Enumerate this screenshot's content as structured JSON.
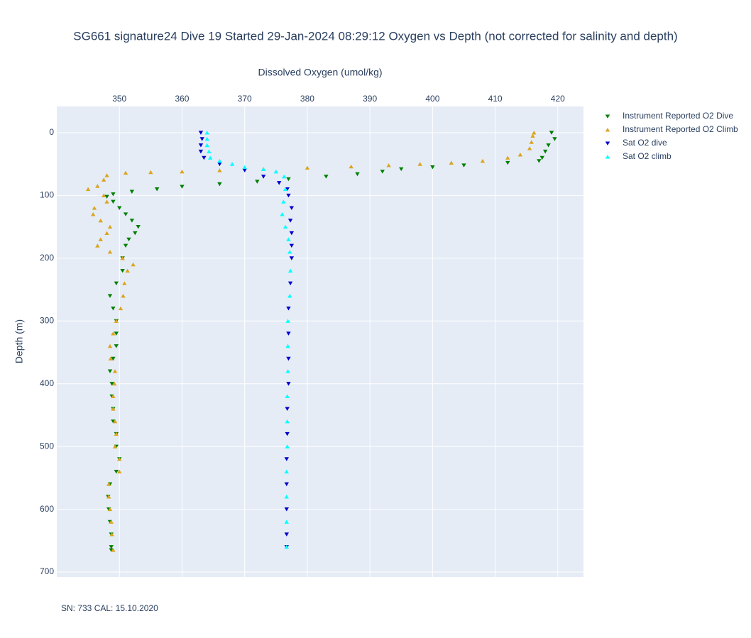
{
  "chart_data": {
    "type": "scatter",
    "title": "SG661 signature24 Dive 19 Started 29-Jan-2024 08:29:12  Oxygen vs Depth (not corrected for salinity and depth)",
    "x_label": "Dissolved Oxygen (umol/kg)",
    "y_label": "Depth (m)",
    "annotation": "SN: 733  CAL: 15.10.2020",
    "xlim": [
      340,
      424.1
    ],
    "xticks": [
      350,
      360,
      370,
      380,
      390,
      400,
      410,
      420
    ],
    "ylim": [
      -41.8,
      707.9
    ],
    "yticks": [
      0,
      100,
      200,
      300,
      400,
      500,
      600,
      700
    ],
    "y_reversed": true,
    "x_axis_side": "top",
    "grid": true,
    "legend": "right",
    "series": [
      {
        "name": "Instrument Reported O2 Dive",
        "color": "#008000",
        "marker": "triangle-down",
        "x": [
          419,
          419.5,
          418.5,
          418,
          417.5,
          417,
          412,
          405,
          400,
          395,
          392,
          388,
          383,
          377,
          372,
          366,
          360,
          356,
          352,
          349,
          348,
          349,
          350,
          351,
          352,
          353,
          352.5,
          351.5,
          351,
          350.5,
          350.5,
          349.5,
          348.5,
          349,
          349.5,
          349.5,
          349.5,
          349,
          348.5,
          348.8,
          348.8,
          349,
          349,
          349.5,
          349.5,
          350,
          349.5,
          348.5,
          348.2,
          348.3,
          348.5,
          348.7,
          348.7,
          348.7
        ],
        "y": [
          0,
          10,
          20,
          30,
          40,
          45,
          48,
          52,
          55,
          58,
          62,
          66,
          70,
          74,
          78,
          82,
          86,
          90,
          94,
          98,
          102,
          110,
          120,
          130,
          140,
          150,
          160,
          170,
          180,
          200,
          220,
          240,
          260,
          280,
          300,
          320,
          340,
          360,
          380,
          400,
          420,
          440,
          460,
          480,
          500,
          520,
          540,
          560,
          580,
          600,
          620,
          640,
          660,
          665
        ]
      },
      {
        "name": "Instrument Reported O2 Climb",
        "color": "#daa520",
        "marker": "triangle-up",
        "x": [
          349,
          348.8,
          348.7,
          348.5,
          348.3,
          348.3,
          350,
          350,
          349.3,
          349.5,
          349.3,
          349,
          349,
          349.2,
          349.3,
          348.6,
          348.5,
          349,
          349.5,
          350.2,
          350.6,
          350.8,
          351.3,
          352.2,
          350.5,
          348.5,
          346.5,
          347,
          348,
          348.5,
          347,
          345.8,
          346,
          348,
          347.5,
          345,
          346.5,
          347.5,
          348,
          351,
          355,
          360,
          366,
          373,
          380,
          387,
          393,
          398,
          403,
          408,
          412,
          414,
          415.5,
          415.8,
          416,
          416.2
        ],
        "y": [
          665,
          640,
          620,
          600,
          580,
          560,
          540,
          520,
          500,
          480,
          460,
          440,
          420,
          400,
          380,
          360,
          340,
          320,
          300,
          280,
          260,
          240,
          220,
          210,
          200,
          190,
          180,
          170,
          160,
          150,
          140,
          130,
          120,
          110,
          100,
          90,
          85,
          75,
          68,
          64,
          63,
          62,
          60,
          58,
          56,
          54,
          52,
          50,
          48,
          45,
          40,
          35,
          25,
          15,
          5,
          0
        ]
      },
      {
        "name": "Sat O2 dive",
        "color": "#0000cd",
        "marker": "triangle-down",
        "x": [
          363,
          363.2,
          363,
          363,
          363.5,
          366,
          370,
          373,
          375.5,
          376.8,
          377,
          377.5,
          377.3,
          377.5,
          377.5,
          377.5,
          377.3,
          377,
          377,
          377,
          377,
          376.8,
          376.8,
          376.7,
          376.7,
          376.7,
          376.7,
          376.7
        ],
        "y": [
          0,
          10,
          20,
          30,
          40,
          50,
          60,
          70,
          80,
          90,
          100,
          120,
          140,
          160,
          180,
          200,
          240,
          280,
          320,
          360,
          400,
          440,
          480,
          520,
          560,
          600,
          640,
          660
        ]
      },
      {
        "name": "Sat O2 climb",
        "color": "#00ffff",
        "marker": "triangle-up",
        "x": [
          376.7,
          376.7,
          376.7,
          376.7,
          376.8,
          376.8,
          376.8,
          376.9,
          376.9,
          376.9,
          377.2,
          377.3,
          377.2,
          377,
          376.5,
          376,
          376.2,
          376.5,
          376.3,
          375,
          373,
          370,
          368,
          366,
          364.5,
          364.3,
          364,
          364,
          364
        ],
        "y": [
          660,
          620,
          580,
          540,
          500,
          460,
          420,
          380,
          340,
          300,
          260,
          220,
          190,
          170,
          150,
          130,
          110,
          90,
          70,
          62,
          58,
          55,
          50,
          45,
          40,
          30,
          20,
          10,
          0
        ]
      }
    ]
  }
}
